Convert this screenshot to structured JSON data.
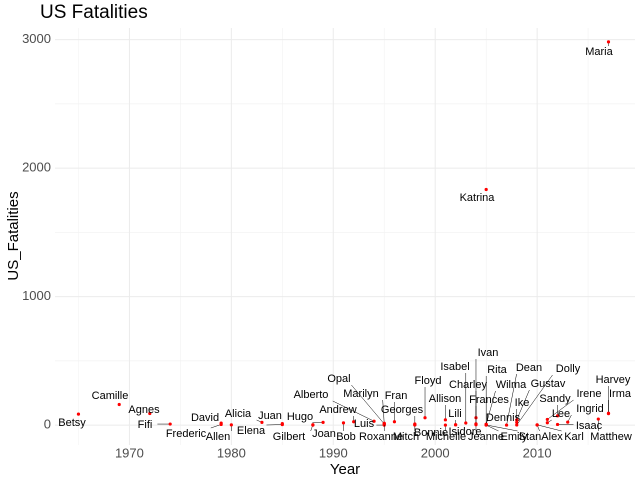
{
  "chart_data": {
    "type": "scatter",
    "title": "US Fatalities",
    "x_label": "Year",
    "y_label": "US_Fatalities",
    "labels": [
      "Betsy",
      "Camille",
      "Agnes",
      "Fifi",
      "Frederic",
      "David",
      "Allen",
      "Alicia",
      "Elena",
      "Juan",
      "Gilbert",
      "Hugo",
      "Joan",
      "Alberto",
      "Andrew",
      "Bob",
      "Luis",
      "Opal",
      "Marilyn",
      "Roxanne",
      "Fran",
      "Georges",
      "Mitch",
      "Floyd",
      "Bonnie",
      "Allison",
      "Michelle",
      "Isabel",
      "Lili",
      "Isidore",
      "Charley",
      "Ivan",
      "Rita",
      "Frances",
      "Jeanne",
      "Katrina",
      "Wilma",
      "Dennis",
      "Dean",
      "Gustav",
      "Ike",
      "Emily",
      "Stan",
      "Dolly",
      "Sandy",
      "Alex",
      "Lee",
      "Karl",
      "Irene",
      "Isaac",
      "Ingrid",
      "Harvey",
      "Irma",
      "Matthew",
      "Maria"
    ],
    "x": [
      1965,
      1969,
      1972,
      1974,
      1979,
      1979,
      1980,
      1983,
      1985,
      1985,
      1988,
      1989,
      1988,
      1994,
      1992,
      1991,
      1995,
      1995,
      1995,
      1995,
      1996,
      1998,
      1998,
      1999,
      1998,
      2001,
      2001,
      2003,
      2002,
      2002,
      2004,
      2004,
      2005,
      2004,
      2004,
      2005,
      2005,
      2005,
      2007,
      2008,
      2008,
      2005,
      2005,
      2008,
      2012,
      2010,
      2011,
      2010,
      2011,
      2012,
      2013,
      2017,
      2017,
      2016,
      2017
    ],
    "values": [
      85,
      160,
      90,
      8,
      5,
      15,
      2,
      21,
      4,
      12,
      3,
      21,
      0,
      30,
      26,
      17,
      0,
      9,
      8,
      14,
      26,
      1,
      9,
      57,
      3,
      41,
      0,
      16,
      2,
      3,
      10,
      57,
      7,
      7,
      3,
      1833,
      5,
      3,
      0,
      41,
      21,
      0,
      1,
      1,
      72,
      1,
      18,
      2,
      44,
      5,
      23,
      89,
      92,
      47,
      2982
    ],
    "color": "red",
    "xlim": [
      1962.7,
      2019.6
    ],
    "xticks": [
      1970,
      1980,
      1990,
      2000,
      2010
    ],
    "ylim": [
      -155,
      3090
    ],
    "yticks": [
      0,
      1000,
      2000,
      3000
    ],
    "grid": true
  }
}
